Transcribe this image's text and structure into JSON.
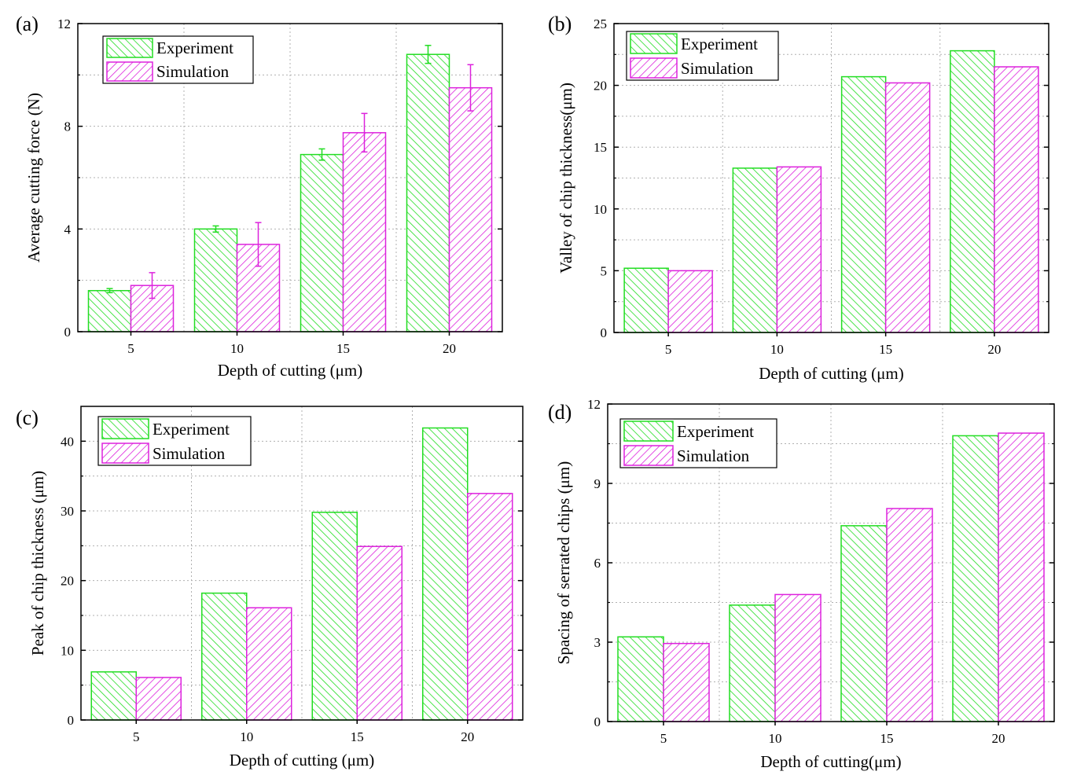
{
  "colors": {
    "experiment": "#22dd22",
    "simulation": "#dd22dd",
    "grid": "#b0b0b0"
  },
  "chart_data": [
    {
      "panel_label": "(a)",
      "type": "bar",
      "categories": [
        "5",
        "10",
        "15",
        "20"
      ],
      "xlabel": "Depth of cutting (μm)",
      "ylabel": "Average cutting force (N)",
      "ylim": [
        0,
        12
      ],
      "yticks": [
        0,
        4,
        8,
        12
      ],
      "ytick_labels": [
        "0",
        "4",
        "8",
        "12"
      ],
      "grid": true,
      "legend_position": "top-left",
      "series": [
        {
          "name": "Experiment",
          "values": [
            1.6,
            4.0,
            6.9,
            10.8
          ],
          "errors": [
            0.08,
            0.12,
            0.22,
            0.35
          ]
        },
        {
          "name": "Simulation",
          "values": [
            1.8,
            3.4,
            7.75,
            9.5
          ],
          "errors": [
            0.5,
            0.85,
            0.75,
            0.9
          ]
        }
      ]
    },
    {
      "panel_label": "(b)",
      "type": "bar",
      "categories": [
        "5",
        "10",
        "15",
        "20"
      ],
      "xlabel": "Depth of cutting (μm)",
      "ylabel": "Valley of chip thickness(μm)",
      "ylim": [
        0,
        25
      ],
      "yticks": [
        0,
        5,
        10,
        15,
        20,
        25
      ],
      "ytick_labels": [
        "0",
        "5",
        "10",
        "15",
        "20",
        "25"
      ],
      "grid": true,
      "legend_position": "top-left",
      "series": [
        {
          "name": "Experiment",
          "values": [
            5.2,
            13.3,
            20.7,
            22.8
          ]
        },
        {
          "name": "Simulation",
          "values": [
            5.0,
            13.4,
            20.2,
            21.5
          ]
        }
      ]
    },
    {
      "panel_label": "(c)",
      "type": "bar",
      "categories": [
        "5",
        "10",
        "15",
        "20"
      ],
      "xlabel": "Depth of cutting (μm)",
      "ylabel": "Peak of chip thickness (μm)",
      "ylim": [
        0,
        45
      ],
      "yticks": [
        0,
        10,
        20,
        30,
        40
      ],
      "ytick_labels": [
        "0",
        "10",
        "20",
        "30",
        "40"
      ],
      "grid": true,
      "legend_position": "top-left",
      "series": [
        {
          "name": "Experiment",
          "values": [
            6.9,
            18.2,
            29.8,
            41.9
          ]
        },
        {
          "name": "Simulation",
          "values": [
            6.1,
            16.1,
            24.9,
            32.5
          ]
        }
      ]
    },
    {
      "panel_label": "(d)",
      "type": "bar",
      "categories": [
        "5",
        "10",
        "15",
        "20"
      ],
      "xlabel": "Depth of cutting(μm)",
      "ylabel": "Spacing of serrated chips (μm)",
      "ylim": [
        0,
        12
      ],
      "yticks": [
        0,
        3,
        6,
        9,
        12
      ],
      "ytick_labels": [
        "0",
        "3",
        "6",
        "9",
        "12"
      ],
      "grid": true,
      "legend_position": "top-left",
      "series": [
        {
          "name": "Experiment",
          "values": [
            3.2,
            4.4,
            7.4,
            10.8
          ]
        },
        {
          "name": "Simulation",
          "values": [
            2.95,
            4.8,
            8.05,
            10.9
          ]
        }
      ]
    }
  ]
}
